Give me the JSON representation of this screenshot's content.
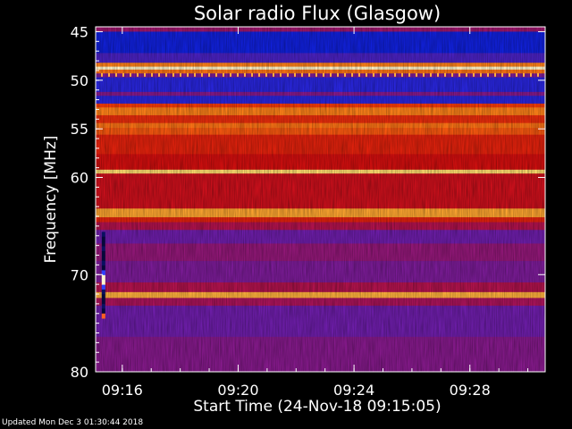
{
  "chart_data": {
    "type": "heatmap",
    "title": "Solar radio Flux (Glasgow)",
    "xlabel": "Start Time (24-Nov-18 09:15:05)",
    "ylabel": "Frequency [MHz]",
    "x_start_minutes": 15.08,
    "x_end_minutes": 30.6,
    "xlim_labels": [
      "09:15:05",
      "09:30:36"
    ],
    "ylim": [
      44.5,
      80.0
    ],
    "y_inverted": true,
    "x_ticks": [
      {
        "label": "09:16",
        "minute": 16
      },
      {
        "label": "09:20",
        "minute": 20
      },
      {
        "label": "09:24",
        "minute": 24
      },
      {
        "label": "09:28",
        "minute": 28
      }
    ],
    "y_ticks": [
      {
        "label": "45",
        "value": 45
      },
      {
        "label": "50",
        "value": 50
      },
      {
        "label": "55",
        "value": 55
      },
      {
        "label": "60",
        "value": 60
      },
      {
        "label": "70",
        "value": 70
      },
      {
        "label": "80",
        "value": 80
      }
    ],
    "colormap": "blue-red-yellow-white (intensity)",
    "bands": [
      {
        "from": 44.5,
        "to": 45.0,
        "level": 0.35
      },
      {
        "from": 45.0,
        "to": 47.2,
        "level": 0.1
      },
      {
        "from": 47.2,
        "to": 48.2,
        "level": 0.2
      },
      {
        "from": 48.2,
        "to": 48.6,
        "level": 0.72
      },
      {
        "from": 48.6,
        "to": 48.9,
        "level": 0.97
      },
      {
        "from": 48.9,
        "to": 49.3,
        "level": 0.7
      },
      {
        "from": 49.3,
        "to": 49.7,
        "level": 0.28
      },
      {
        "from": 49.7,
        "to": 51.2,
        "level": 0.15
      },
      {
        "from": 51.2,
        "to": 51.6,
        "level": 0.3
      },
      {
        "from": 51.6,
        "to": 52.4,
        "level": 0.15
      },
      {
        "from": 52.4,
        "to": 52.8,
        "level": 0.62
      },
      {
        "from": 52.8,
        "to": 53.6,
        "level": 0.72
      },
      {
        "from": 53.6,
        "to": 54.4,
        "level": 0.58
      },
      {
        "from": 54.4,
        "to": 54.9,
        "level": 0.7
      },
      {
        "from": 54.9,
        "to": 55.6,
        "level": 0.66
      },
      {
        "from": 55.6,
        "to": 57.6,
        "level": 0.55
      },
      {
        "from": 57.6,
        "to": 59.2,
        "level": 0.5
      },
      {
        "from": 59.2,
        "to": 59.6,
        "level": 0.88
      },
      {
        "from": 59.6,
        "to": 63.2,
        "level": 0.48
      },
      {
        "from": 63.2,
        "to": 64.1,
        "level": 0.78
      },
      {
        "from": 64.1,
        "to": 64.6,
        "level": 0.55
      },
      {
        "from": 64.6,
        "to": 65.4,
        "level": 0.4
      },
      {
        "from": 65.4,
        "to": 66.8,
        "level": 0.25
      },
      {
        "from": 66.8,
        "to": 68.6,
        "level": 0.33
      },
      {
        "from": 68.6,
        "to": 70.8,
        "level": 0.28
      },
      {
        "from": 70.8,
        "to": 71.8,
        "level": 0.4
      },
      {
        "from": 71.8,
        "to": 72.4,
        "level": 0.8
      },
      {
        "from": 72.4,
        "to": 73.2,
        "level": 0.38
      },
      {
        "from": 73.2,
        "to": 76.4,
        "level": 0.25
      },
      {
        "from": 76.4,
        "to": 80.0,
        "level": 0.3
      }
    ],
    "burst": {
      "minute": 15.35,
      "from": 65.6,
      "to": 74.5
    }
  },
  "footer": "Updated Mon Dec  3 01:30:44 2018"
}
